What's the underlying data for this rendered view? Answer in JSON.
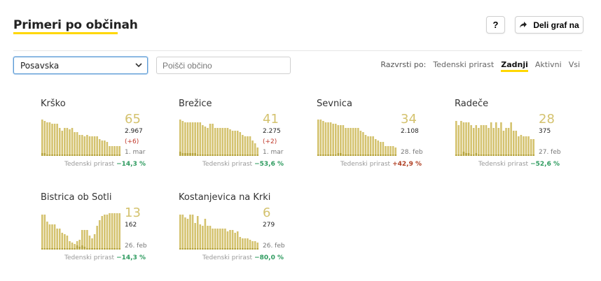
{
  "header": {
    "title": "Primeri po občinah",
    "help_label": "?",
    "share_label": "Deli graf na"
  },
  "filters": {
    "region_value": "Posavska",
    "search_placeholder": "Poišči občino"
  },
  "sort": {
    "label": "Razvrsti po:",
    "options": [
      "Tedenski prirast",
      "Zadnji",
      "Aktivni",
      "Vsi"
    ],
    "active": "Zadnji"
  },
  "colors": {
    "bar": "#d4c26e",
    "bar_dark": "#b5a33a",
    "accent": "#ffd700",
    "up": "#b04024",
    "down": "#2e9b5f"
  },
  "cards": [
    {
      "name": "Krško",
      "big": "65",
      "total": "2.967",
      "delta": "(+6)",
      "date": "1. mar",
      "foot_label": "Tedenski prirast",
      "pct": "−14,3 %",
      "trend": "down",
      "bars": [
        52,
        50,
        48,
        48,
        46,
        46,
        46,
        40,
        36,
        40,
        40,
        38,
        40,
        34,
        34,
        30,
        30,
        28,
        30,
        28,
        28,
        28,
        28,
        24,
        22,
        22,
        20,
        14,
        14,
        14,
        14,
        14
      ],
      "dark": [
        4,
        4,
        2,
        2,
        2,
        2,
        2,
        2,
        2,
        2,
        2,
        2,
        2,
        2,
        2,
        2,
        2,
        2,
        2,
        2,
        2,
        2,
        2,
        2,
        2,
        2,
        2,
        2,
        2,
        2,
        2,
        2
      ]
    },
    {
      "name": "Brežice",
      "big": "41",
      "total": "2.275",
      "delta": "(+2)",
      "date": "1. mar",
      "foot_label": "Tedenski prirast",
      "pct": "−53,6 %",
      "trend": "down",
      "bars": [
        52,
        50,
        48,
        48,
        48,
        48,
        48,
        48,
        48,
        44,
        42,
        40,
        46,
        46,
        40,
        40,
        40,
        40,
        40,
        40,
        38,
        36,
        36,
        36,
        34,
        30,
        28,
        28,
        28,
        22,
        18,
        12
      ],
      "dark": [
        6,
        4,
        4,
        4,
        4,
        4,
        4,
        2,
        2,
        2,
        2,
        2,
        2,
        2,
        2,
        2,
        2,
        2,
        2,
        2,
        2,
        2,
        2,
        2,
        2,
        2,
        2,
        2,
        2,
        2,
        2,
        2
      ]
    },
    {
      "name": "Sevnica",
      "big": "34",
      "total": "2.108",
      "delta": "",
      "date": "28. feb",
      "foot_label": "Tedenski prirast",
      "pct": "+42,9 %",
      "trend": "up",
      "bars": [
        52,
        52,
        50,
        48,
        48,
        48,
        46,
        46,
        44,
        44,
        44,
        40,
        40,
        40,
        40,
        40,
        40,
        36,
        34,
        30,
        28,
        28,
        28,
        24,
        22,
        20,
        20,
        14,
        14,
        14,
        14,
        12
      ],
      "dark": [
        2,
        2,
        2,
        2,
        2,
        2,
        2,
        2,
        4,
        4,
        2,
        2,
        2,
        2,
        2,
        2,
        2,
        2,
        2,
        2,
        2,
        2,
        2,
        2,
        2,
        2,
        2,
        2,
        2,
        2,
        2,
        2
      ]
    },
    {
      "name": "Radeče",
      "big": "28",
      "total": "375",
      "delta": "",
      "date": "27. feb",
      "foot_label": "Tedenski prirast",
      "pct": "−52,6 %",
      "trend": "down",
      "bars": [
        50,
        44,
        50,
        48,
        48,
        48,
        44,
        40,
        44,
        40,
        44,
        44,
        44,
        40,
        48,
        40,
        48,
        40,
        48,
        36,
        40,
        40,
        48,
        36,
        36,
        28,
        30,
        28,
        28,
        28,
        24,
        24
      ],
      "dark": [
        2,
        2,
        2,
        6,
        4,
        4,
        2,
        2,
        4,
        2,
        2,
        2,
        2,
        2,
        2,
        2,
        2,
        2,
        2,
        2,
        2,
        2,
        2,
        2,
        2,
        2,
        2,
        2,
        2,
        2,
        2,
        2
      ]
    },
    {
      "name": "Bistrica ob Sotli",
      "big": "13",
      "total": "162",
      "delta": "",
      "date": "26. feb",
      "foot_label": "Tedenski prirast",
      "pct": "−14,3 %",
      "trend": "down",
      "bars": [
        50,
        50,
        40,
        36,
        36,
        36,
        30,
        30,
        24,
        22,
        20,
        12,
        10,
        8,
        12,
        14,
        28,
        28,
        28,
        20,
        16,
        22,
        34,
        42,
        48,
        50,
        50,
        52,
        52,
        52,
        52,
        52
      ],
      "dark": [
        2,
        2,
        2,
        2,
        2,
        2,
        2,
        2,
        2,
        2,
        2,
        2,
        2,
        2,
        6,
        4,
        6,
        4,
        2,
        2,
        2,
        2,
        2,
        2,
        2,
        2,
        2,
        2,
        2,
        2,
        2,
        2
      ]
    },
    {
      "name": "Kostanjevica na Krki",
      "big": "6",
      "total": "279",
      "delta": "",
      "date": "26. feb",
      "foot_label": "Tedenski prirast",
      "pct": "−80,0 %",
      "trend": "down",
      "bars": [
        50,
        50,
        46,
        44,
        50,
        50,
        38,
        48,
        36,
        34,
        44,
        34,
        34,
        30,
        30,
        30,
        30,
        30,
        30,
        26,
        28,
        28,
        24,
        26,
        18,
        16,
        16,
        16,
        14,
        12,
        12,
        10
      ],
      "dark": [
        2,
        2,
        2,
        2,
        2,
        2,
        2,
        2,
        2,
        2,
        2,
        2,
        2,
        2,
        2,
        2,
        2,
        2,
        2,
        2,
        2,
        2,
        2,
        2,
        2,
        2,
        2,
        2,
        2,
        2,
        2,
        2
      ]
    }
  ]
}
